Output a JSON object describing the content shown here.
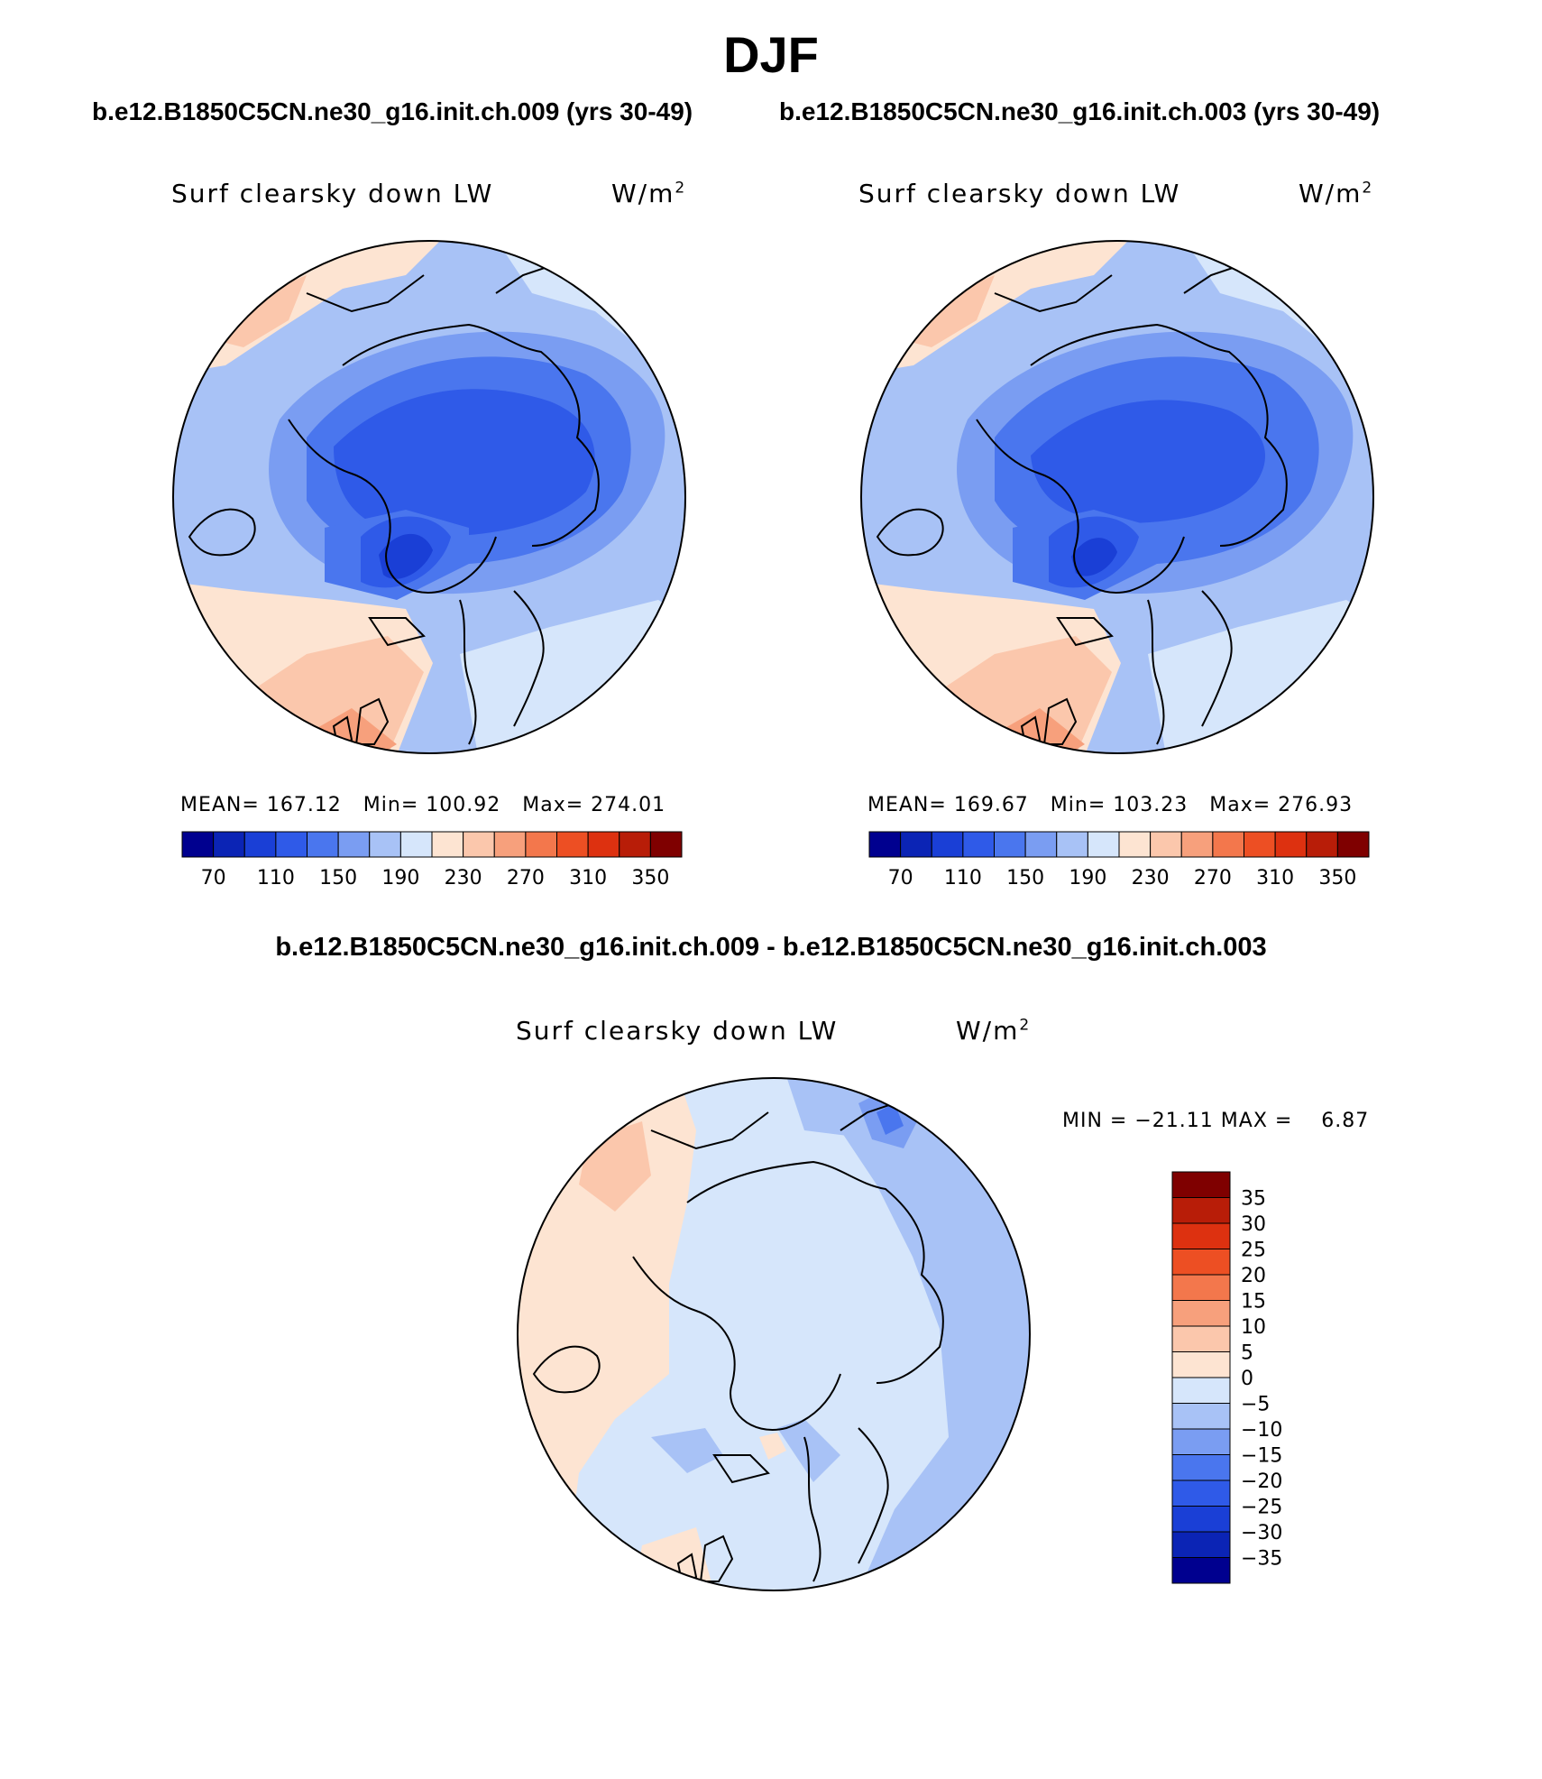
{
  "title": "DJF",
  "panels": [
    {
      "case": "b.e12.B1850C5CN.ne30_g16.init.ch.009 (yrs 30-49)",
      "variable": "Surf clearsky down LW",
      "units_base": "W/m",
      "units_exp": "2",
      "mean_label": "MEAN=",
      "mean": "167.12",
      "min_label": "Min=",
      "min": "100.92",
      "max_label": "Max=",
      "max": "274.01"
    },
    {
      "case": "b.e12.B1850C5CN.ne30_g16.init.ch.003 (yrs 30-49)",
      "variable": "Surf clearsky down LW",
      "units_base": "W/m",
      "units_exp": "2",
      "mean_label": "MEAN=",
      "mean": "169.67",
      "min_label": "Min=",
      "min": "103.23",
      "max_label": "Max=",
      "max": "276.93"
    }
  ],
  "diff": {
    "title": "b.e12.B1850C5CN.ne30_g16.init.ch.009 - b.e12.B1850C5CN.ne30_g16.init.ch.003",
    "variable": "Surf clearsky down LW",
    "units_base": "W/m",
    "units_exp": "2",
    "min_label": "MIN =",
    "min": "−21.11",
    "max_label": "MAX =",
    "max": "6.87"
  },
  "chart_data": [
    {
      "type": "colorbar",
      "orientation": "horizontal",
      "labels": [
        "70",
        "110",
        "150",
        "190",
        "230",
        "270",
        "310",
        "350"
      ],
      "levels": [
        70,
        90,
        110,
        130,
        150,
        170,
        190,
        210,
        230,
        250,
        270,
        290,
        310,
        330,
        350
      ],
      "colors": [
        "#00008f",
        "#0b24b5",
        "#1a3fd6",
        "#2f5ae8",
        "#4a76ee",
        "#7a9df2",
        "#a8c2f6",
        "#d6e6fb",
        "#fde4d2",
        "#fbc7ac",
        "#f7a07c",
        "#f3774c",
        "#ed4f23",
        "#dd3110",
        "#b81d08",
        "#7f0000"
      ]
    },
    {
      "type": "colorbar",
      "orientation": "vertical",
      "labels": [
        "35",
        "30",
        "25",
        "20",
        "15",
        "10",
        "5",
        "0",
        "−5",
        "−10",
        "−15",
        "−20",
        "−25",
        "−30",
        "−35"
      ],
      "levels": [
        35,
        30,
        25,
        20,
        15,
        10,
        5,
        0,
        -5,
        -10,
        -15,
        -20,
        -25,
        -30,
        -35
      ],
      "colors": [
        "#7f0000",
        "#b81d08",
        "#dd3110",
        "#ed4f23",
        "#f3774c",
        "#f7a07c",
        "#fbc7ac",
        "#fde4d2",
        "#d6e6fb",
        "#a8c2f6",
        "#7a9df2",
        "#4a76ee",
        "#2f5ae8",
        "#1a3fd6",
        "#0b24b5",
        "#00008f"
      ]
    }
  ]
}
